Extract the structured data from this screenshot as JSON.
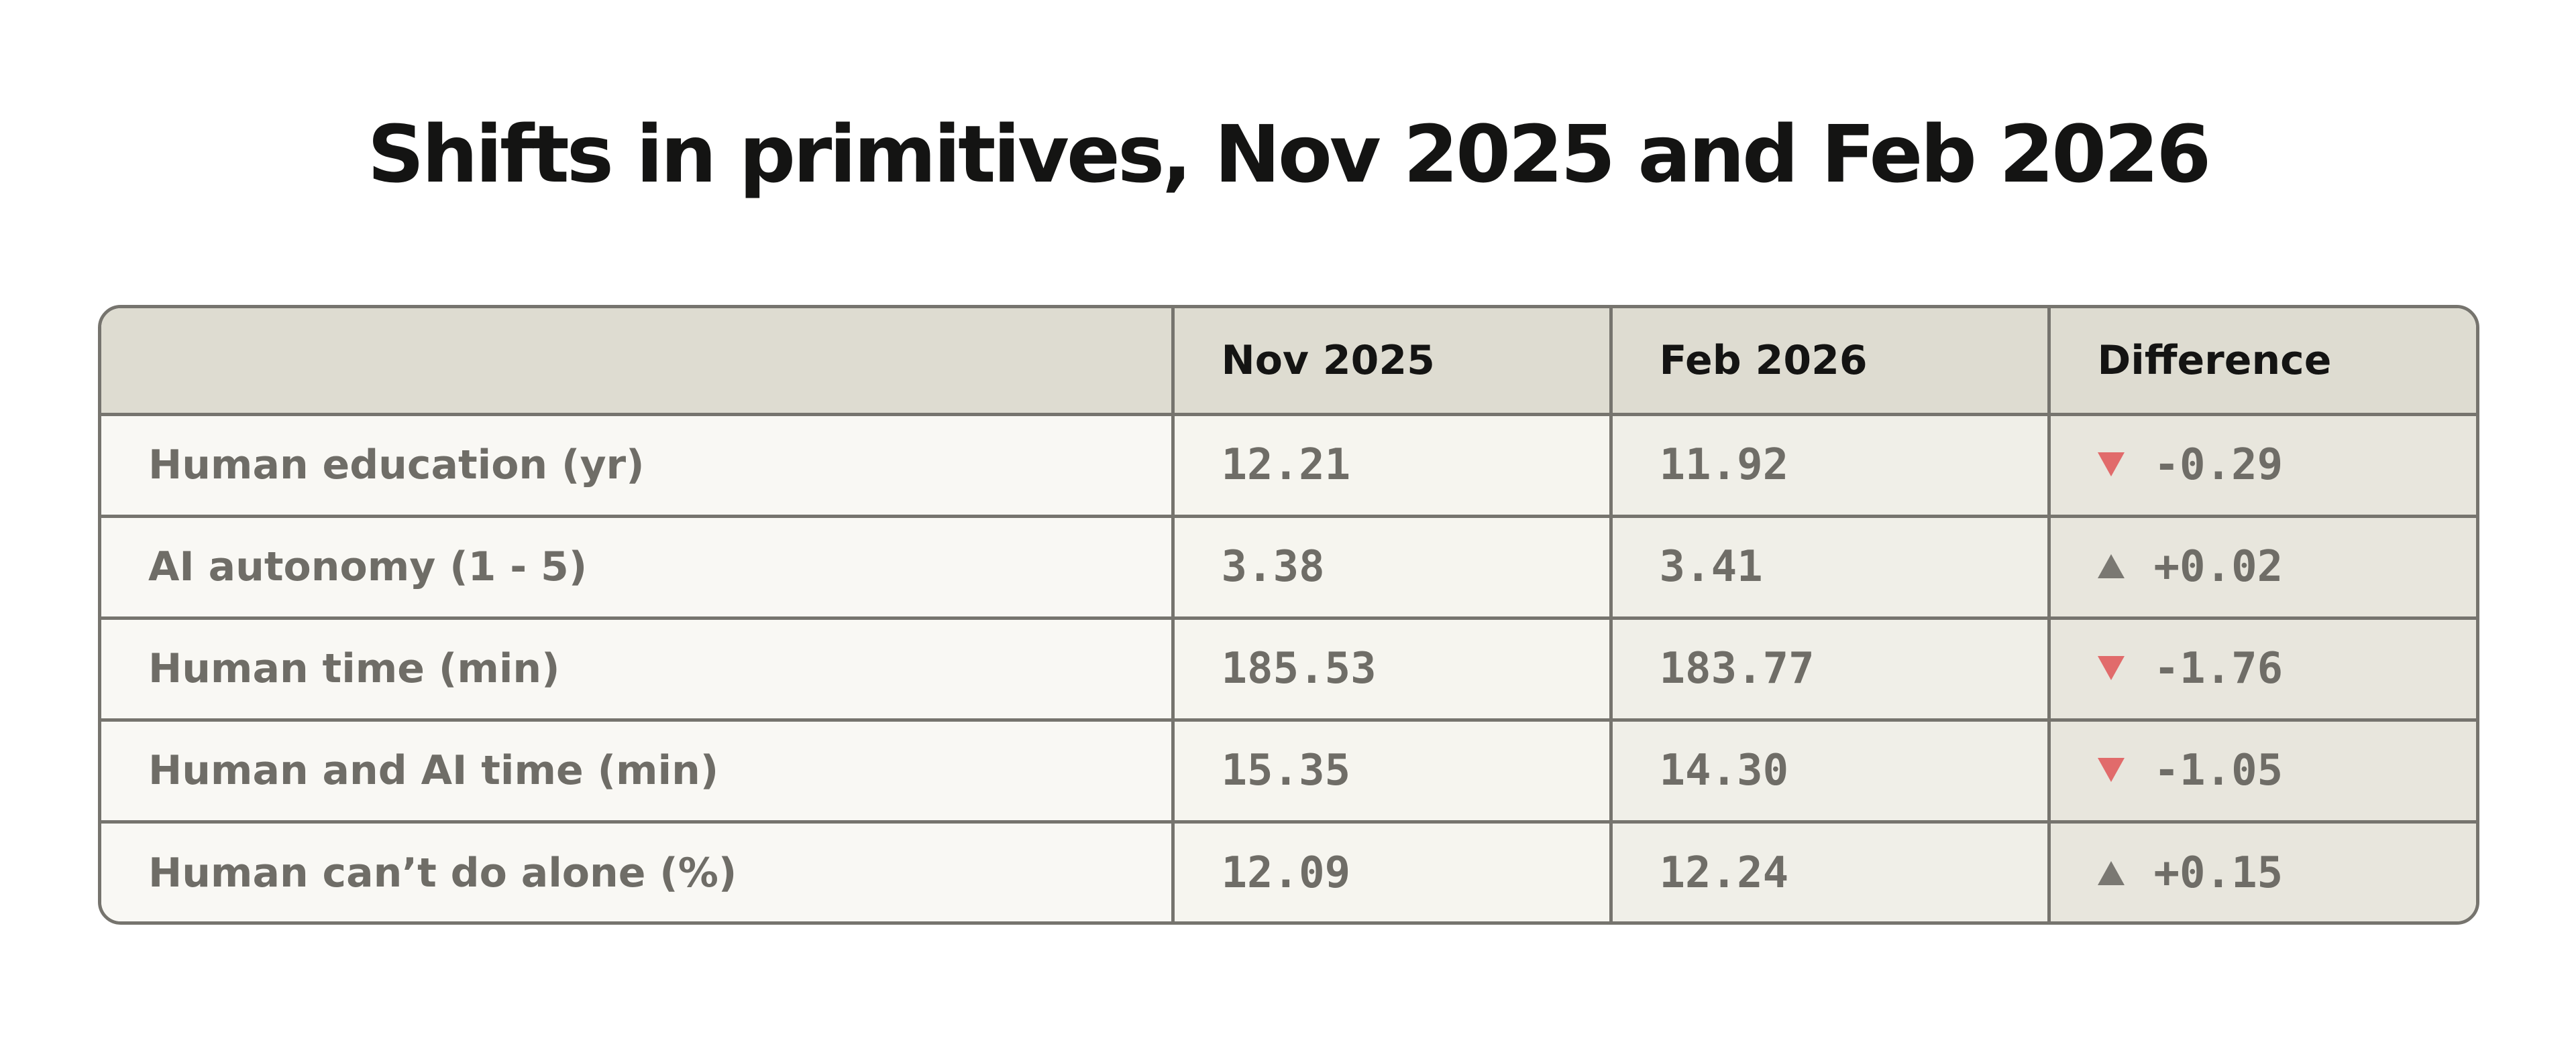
{
  "chart_data": {
    "type": "table",
    "title": "Shifts in primitives, Nov 2025 and Feb 2026",
    "columns": [
      "",
      "Nov 2025",
      "Feb 2026",
      "Difference"
    ],
    "rows": [
      {
        "label": "Human education (yr)",
        "nov_2025": "12.21",
        "feb_2026": "11.92",
        "difference": "-0.29",
        "direction": "down"
      },
      {
        "label": "AI autonomy (1 - 5)",
        "nov_2025": "3.38",
        "feb_2026": "3.41",
        "difference": "+0.02",
        "direction": "up"
      },
      {
        "label": "Human time (min)",
        "nov_2025": "185.53",
        "feb_2026": "183.77",
        "difference": "-1.76",
        "direction": "down"
      },
      {
        "label": "Human and AI time (min)",
        "nov_2025": "15.35",
        "feb_2026": "14.30",
        "difference": "-1.05",
        "direction": "down"
      },
      {
        "label": "Human can’t do alone (%)",
        "nov_2025": "12.09",
        "feb_2026": "12.24",
        "difference": "+0.15",
        "direction": "up"
      }
    ],
    "colors": {
      "down_arrow": "#e16b6b",
      "up_arrow": "#7a7872",
      "header_bg": "#dedcd1",
      "border": "#76746e"
    }
  }
}
